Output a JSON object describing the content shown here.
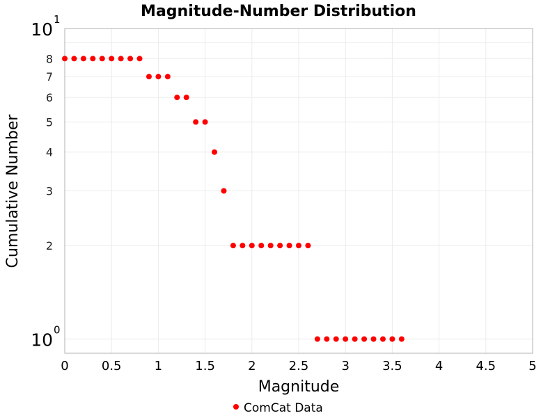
{
  "chart_data": {
    "type": "scatter",
    "title": "Magnitude-Number Distribution",
    "xlabel": "Magnitude",
    "ylabel": "Cumulative Number",
    "xlim": [
      0,
      5
    ],
    "ylim": [
      0.9,
      10
    ],
    "y_scale": "log",
    "grid": true,
    "legend_position": "bottom",
    "x_ticks": [
      "0",
      "0.5",
      "1",
      "1.5",
      "2",
      "2.5",
      "3",
      "3.5",
      "4",
      "4.5",
      "5"
    ],
    "y_ticks_minor": [
      "2",
      "3",
      "4",
      "5",
      "6",
      "7",
      "8"
    ],
    "y_ticks_major": [
      {
        "base": "10",
        "exp": "0"
      },
      {
        "base": "10",
        "exp": "1"
      }
    ],
    "series": [
      {
        "name": "ComCat Data",
        "color": "#ff0000",
        "x": [
          0.0,
          0.1,
          0.2,
          0.3,
          0.4,
          0.5,
          0.6,
          0.7,
          0.8,
          0.9,
          1.0,
          1.1,
          1.2,
          1.3,
          1.4,
          1.5,
          1.6,
          1.7,
          1.8,
          1.9,
          2.0,
          2.1,
          2.2,
          2.3,
          2.4,
          2.5,
          2.6,
          2.7,
          2.8,
          2.9,
          3.0,
          3.1,
          3.2,
          3.3,
          3.4,
          3.5,
          3.6
        ],
        "y": [
          8,
          8,
          8,
          8,
          8,
          8,
          8,
          8,
          8,
          7,
          7,
          7,
          6,
          6,
          5,
          5,
          4,
          3,
          2,
          2,
          2,
          2,
          2,
          2,
          2,
          2,
          2,
          1,
          1,
          1,
          1,
          1,
          1,
          1,
          1,
          1,
          1
        ]
      }
    ]
  }
}
